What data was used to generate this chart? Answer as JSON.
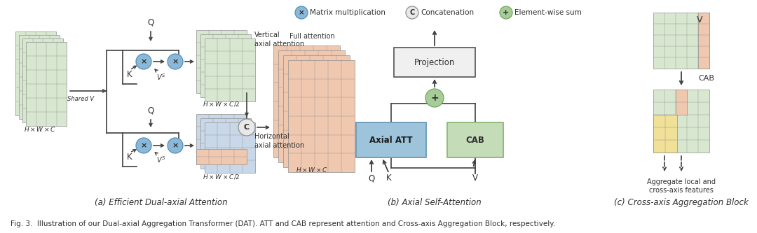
{
  "fig_caption": "Fig. 3.  Illustration of our Dual-axial Aggregation Transformer (DAT). ATT and CAB represent attention and Cross-axis Aggregation Block, respectively.",
  "subcaption_a": "(a) Efficient Dual-axial Attention",
  "subcaption_b": "(b) Axial Self-Attention",
  "subcaption_c": "(c) Cross-axis Aggregation Block",
  "bg_color": "#ffffff",
  "grid_green_light": "#c8dcc0",
  "grid_green_cell": "#d8e8d0",
  "grid_pink": "#f0c8b0",
  "grid_blue_light": "#b8cce0",
  "grid_blue_cell": "#c8d8e8",
  "grid_yellow": "#f0e098",
  "grid_orange_light": "#f0c8a8",
  "box_blue_fill": "#9ec4dc",
  "box_blue_border": "#6a9ab8",
  "box_green_fill": "#c4ddb8",
  "box_green_border": "#8ab878",
  "proj_fill": "#f0f0f0",
  "proj_border": "#606060",
  "circle_blue_fill": "#8ab8d8",
  "circle_blue_border": "#5090b8",
  "circle_gray_fill": "#e8e8e8",
  "circle_gray_border": "#909090",
  "circle_green_fill": "#a8cc98",
  "circle_green_border": "#70a860",
  "arrow_color": "#404040",
  "text_color": "#303030",
  "legend_x_symbol": "x",
  "legend_c_symbol": "C",
  "legend_plus_symbol": "+"
}
